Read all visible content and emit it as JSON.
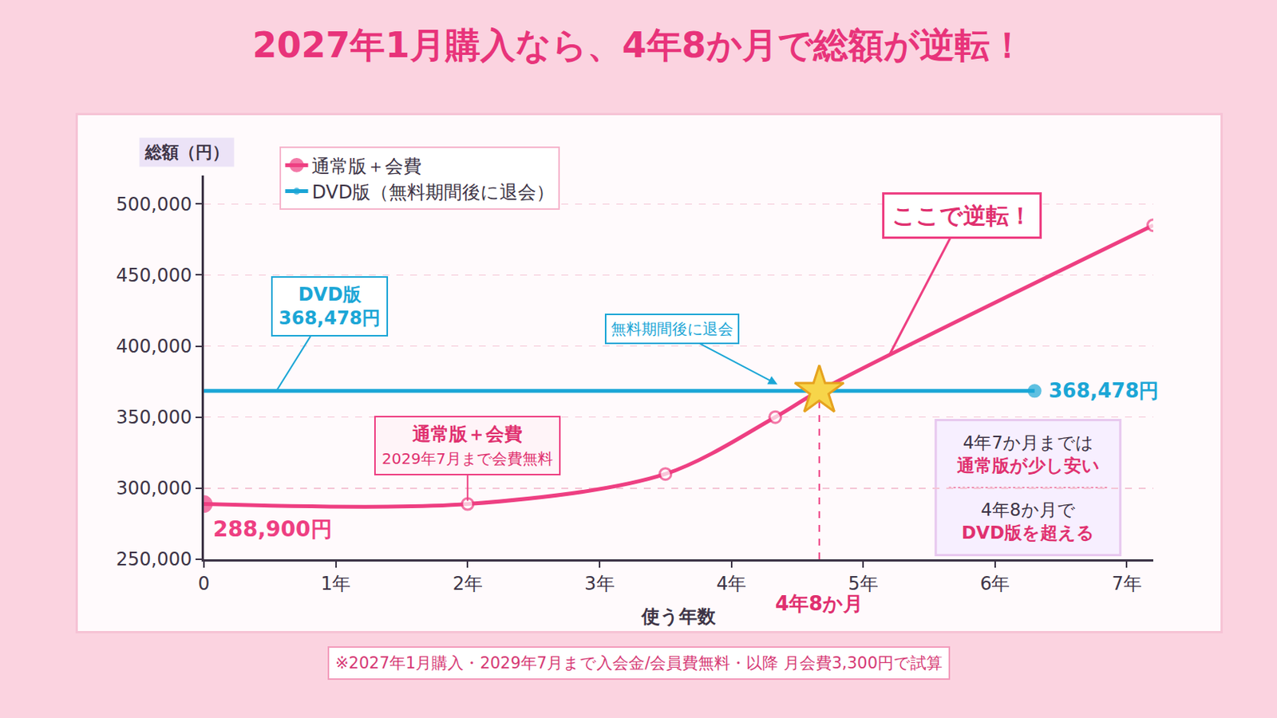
{
  "chart_data": {
    "type": "line",
    "title": "2027年1月購入なら、4年8か月で総額が逆転！",
    "x_label": "使う年数",
    "y_label": "総額（円）",
    "xlim": [
      0,
      7.2
    ],
    "xticks": [
      0,
      {
        "value": 1,
        "label": "1年"
      },
      {
        "value": 2,
        "label": "2年"
      },
      {
        "value": 3,
        "label": "3年"
      },
      {
        "value": 4,
        "label": "4年"
      },
      {
        "value": 5,
        "label": "5年"
      },
      {
        "value": 6,
        "label": "6年"
      },
      {
        "value": 7,
        "label": "7年"
      }
    ],
    "ylim": [
      250000,
      520000
    ],
    "yticks": [
      {
        "value": 250000,
        "label": "250,000"
      },
      {
        "value": 300000,
        "label": "300,000"
      },
      {
        "value": 350000,
        "label": "350,000"
      },
      {
        "value": 400000,
        "label": "400,000"
      },
      {
        "value": 450000,
        "label": "450,000"
      },
      {
        "value": 500000,
        "label": "500,000"
      }
    ],
    "grid": "y",
    "legend": "upper left",
    "series": [
      {
        "name": "通常版＋会費",
        "color": "#ee3f82",
        "x": [
          0,
          2,
          3.5,
          4.333,
          4.667,
          7.2
        ],
        "values": [
          288900,
          288900,
          310000,
          350000,
          368478,
          485000
        ],
        "value_labels": [
          "288,900円",
          null,
          null,
          null,
          null,
          null
        ],
        "marker": "circle",
        "line_style": "spline"
      },
      {
        "name": "DVD版（無料期間後に退会）",
        "color": "#1ba6d6",
        "x": [
          0,
          6.3
        ],
        "values": [
          368478,
          368478
        ],
        "value_labels": [
          null,
          "368,478円"
        ],
        "line_style": "solid"
      }
    ],
    "crossover": {
      "x": 4.667,
      "y": 368478,
      "label": "4年8か月",
      "marker": "star",
      "color": "#f7d54a"
    },
    "annotations": {
      "dvd": "DVD版\n368,478円",
      "cancel": "無料期間後に退会",
      "reverse": "ここで逆転！",
      "regular": "通常版＋会費\n2029年7月まで会費無料",
      "note_before": "4年7か月までは\n通常版が少し安い",
      "note_after": "4年8か月で\nDVD版を超える"
    },
    "footnote": "※2027年1月購入・2029年7月まで入会金/会員費無料・以降 月会費3,300円で試算"
  }
}
